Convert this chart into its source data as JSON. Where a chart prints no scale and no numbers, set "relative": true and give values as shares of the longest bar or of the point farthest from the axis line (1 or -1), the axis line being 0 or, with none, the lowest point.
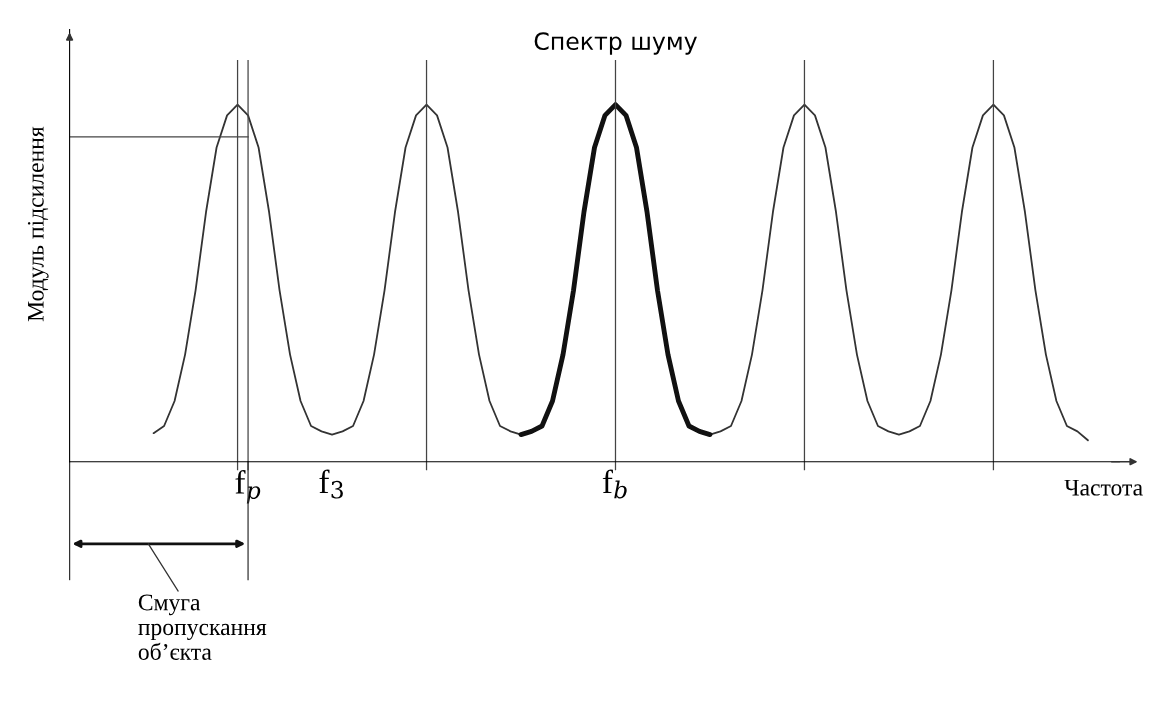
{
  "chart_data": {
    "type": "line",
    "relative": true,
    "xlabel": "Частота",
    "ylabel": "Модуль підсилення",
    "categories": [
      null,
      null,
      null,
      null,
      null,
      null,
      null,
      null,
      null,
      "f$_{p}$",
      null,
      null,
      null,
      null,
      null,
      null,
      null,
      "f$_{3}$",
      null,
      null,
      null,
      null,
      null,
      null,
      null,
      null,
      null,
      null,
      null,
      null,
      null,
      null,
      null,
      null,
      null,
      null,
      null,
      null,
      null,
      null,
      null,
      null,
      null,
      null,
      "f$_{b}$",
      null,
      null,
      null,
      null,
      null,
      null,
      null,
      null,
      null,
      null,
      null,
      null,
      null,
      null,
      null,
      null,
      null,
      null,
      null,
      null,
      null,
      null,
      null,
      null,
      null,
      null,
      null,
      null,
      null,
      null,
      null,
      null,
      null,
      null,
      null,
      null,
      null,
      null,
      null,
      null,
      null,
      null,
      null,
      null,
      null
    ],
    "series": [
      {
        "color": "#333333",
        "values": [
          0.08,
          0.1,
          0.17,
          0.3,
          0.48,
          0.7,
          0.88,
          0.97,
          1,
          0.97,
          0.88,
          0.7,
          0.48,
          0.3,
          0.17,
          0.1,
          0.085,
          0.076,
          0.085,
          0.1,
          0.17,
          0.3,
          0.48,
          0.7,
          0.88,
          0.97,
          1,
          0.97,
          0.88,
          0.7,
          0.48,
          0.3,
          0.17,
          0.1,
          0.085,
          0.076,
          null,
          null,
          null,
          null,
          null,
          null,
          null,
          null,
          null,
          null,
          null,
          null,
          null,
          null,
          null,
          null,
          null,
          0.076,
          0.085,
          0.1,
          0.17,
          0.3,
          0.48,
          0.7,
          0.88,
          0.97,
          1,
          0.97,
          0.88,
          0.7,
          0.48,
          0.3,
          0.17,
          0.1,
          0.085,
          0.076,
          0.085,
          0.1,
          0.17,
          0.3,
          0.48,
          0.7,
          0.88,
          0.97,
          1,
          0.97,
          0.88,
          0.7,
          0.48,
          0.3,
          0.17,
          0.1,
          0.085,
          0.06
        ]
      },
      {
        "name": "Спектр шуму",
        "color": "#111111",
        "values": [
          null,
          null,
          null,
          null,
          null,
          null,
          null,
          null,
          null,
          null,
          null,
          null,
          null,
          null,
          null,
          null,
          null,
          null,
          null,
          null,
          null,
          null,
          null,
          null,
          null,
          null,
          null,
          null,
          null,
          null,
          null,
          null,
          null,
          null,
          null,
          0.076,
          0.085,
          0.1,
          0.17,
          0.3,
          0.48,
          0.7,
          0.88,
          0.97,
          1,
          0.97,
          0.88,
          0.7,
          0.48,
          0.3,
          0.17,
          0.1,
          0.085,
          0.076,
          null,
          null,
          null,
          null,
          null,
          null,
          null,
          null,
          null,
          null,
          null,
          null,
          null,
          null,
          null,
          null,
          null,
          null,
          null,
          null,
          null,
          null,
          null,
          null,
          null,
          null,
          null,
          null,
          null,
          null,
          null,
          null,
          null,
          null,
          null,
          null
        ]
      }
    ],
    "ref_lines": [
      {
        "axis": "y",
        "value": 0.91
      }
    ],
    "grid": "x",
    "annotations": [
      "Смуга\nпропускання\nоб’єкта"
    ]
  }
}
